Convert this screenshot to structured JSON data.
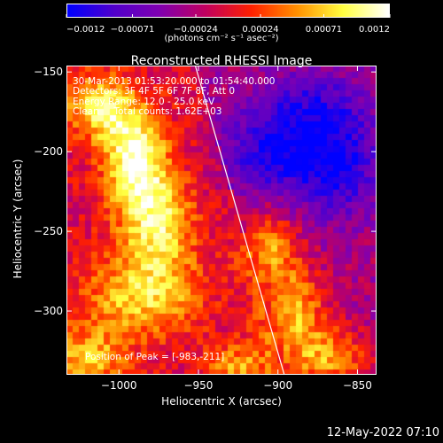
{
  "chart_data": {
    "type": "heatmap",
    "title": "Reconstructed RHESSI Image",
    "xlabel": "Heliocentric X (arcsec)",
    "ylabel": "Heliocentric Y (arcsec)",
    "xlim": [
      -1033,
      -838
    ],
    "ylim": [
      -340,
      -146
    ],
    "x_ticks": [
      -1000,
      -950,
      -900,
      -850
    ],
    "x_tick_labels": [
      "−1000",
      "−950",
      "−900",
      "−850"
    ],
    "y_ticks": [
      -150,
      -200,
      -250,
      -300
    ],
    "y_tick_labels": [
      "−150",
      "−200",
      "−250",
      "−300"
    ],
    "colorbar": {
      "min": -0.0012,
      "max": 0.0012,
      "ticks": [
        -0.0012,
        -0.00071,
        -0.00024,
        0.00024,
        0.00071,
        0.0012
      ],
      "tick_labels": [
        "−0.0012",
        "−0.00071",
        "−0.00024",
        "0.00024",
        "0.00071",
        "0.0012"
      ],
      "colors": [
        "#0000ff",
        "#5000cc",
        "#8000b0",
        "#c00060",
        "#ff2000",
        "#ff9000",
        "#ffff40",
        "#ffffff"
      ]
    },
    "units_label": "(photons cm⁻² s⁻¹ asec⁻²)",
    "annotations": [
      "30-Mar-2013 01:53:20.000 to 01:54:40.000",
      "Detectors: 3F 4F 5F 6F 7F 8F, Att 0",
      "Energy Range: 12.0 - 25.0 keV",
      "Clean     Total counts: 1.62E+03"
    ],
    "peak_label": "Position of Peak = [-983,-211]",
    "peak": [
      -983,
      -211
    ],
    "limb_line": [
      [
        -952,
        -146
      ],
      [
        -896,
        -340
      ]
    ],
    "sources": [
      {
        "x": -990,
        "y": -205,
        "value": 0.00115,
        "sx": 14,
        "sy": 22
      },
      {
        "x": -1012,
        "y": -172,
        "value": 0.0009,
        "sx": 16,
        "sy": 14
      },
      {
        "x": -975,
        "y": -245,
        "value": 0.0009,
        "sx": 16,
        "sy": 22
      },
      {
        "x": -985,
        "y": -290,
        "value": 0.0008,
        "sx": 26,
        "sy": 18
      },
      {
        "x": -1020,
        "y": -330,
        "value": 0.0007,
        "sx": 18,
        "sy": 14
      },
      {
        "x": -905,
        "y": -260,
        "value": 0.0008,
        "sx": 12,
        "sy": 16
      },
      {
        "x": -890,
        "y": -300,
        "value": 0.0009,
        "sx": 14,
        "sy": 20
      },
      {
        "x": -868,
        "y": -330,
        "value": 0.0008,
        "sx": 18,
        "sy": 14
      },
      {
        "x": -925,
        "y": -335,
        "value": 0.0006,
        "sx": 14,
        "sy": 10
      },
      {
        "x": -900,
        "y": -200,
        "value": -0.0008,
        "sx": 24,
        "sy": 20
      },
      {
        "x": -860,
        "y": -210,
        "value": -0.0007,
        "sx": 18,
        "sy": 22
      },
      {
        "x": -875,
        "y": -170,
        "value": -0.0005,
        "sx": 24,
        "sy": 16
      }
    ],
    "timestamp": "12-May-2022 07:10"
  }
}
